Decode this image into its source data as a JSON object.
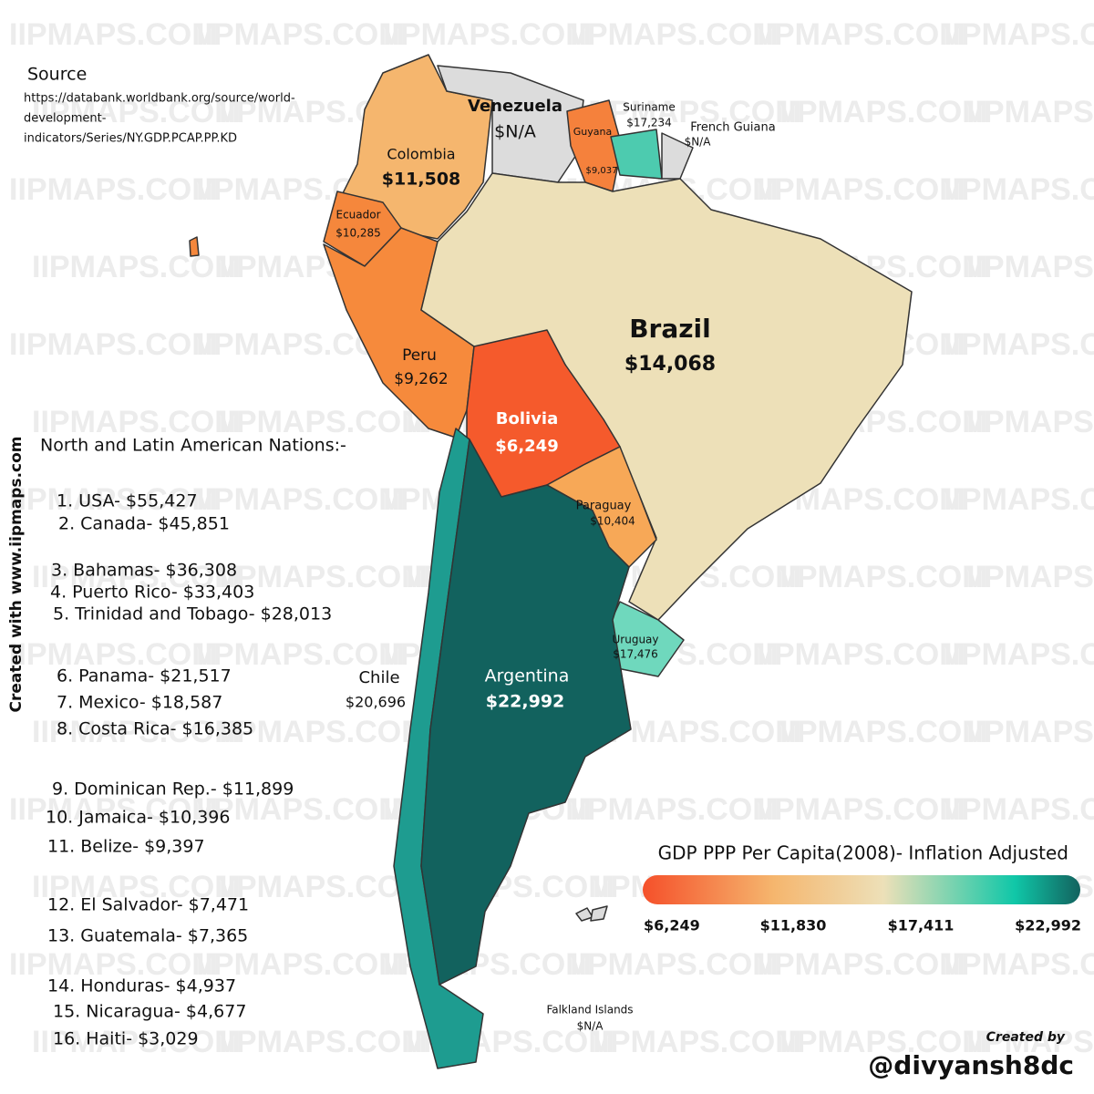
{
  "watermark": "IIPMAPS.COM",
  "source": {
    "title": "Source",
    "lines": [
      "https://databank.worldbank.org/source/world-",
      "development-",
      "indicators/Series/NY.GDP.PCAP.PP.KD"
    ]
  },
  "countries": [
    {
      "name": "Venezuela",
      "value": "$N/A"
    },
    {
      "name": "Colombia",
      "value": "$11,508"
    },
    {
      "name": "Guyana",
      "value": "$9,037"
    },
    {
      "name": "Suriname",
      "value": "$17,234"
    },
    {
      "name": "French Guiana",
      "value": "$N/A"
    },
    {
      "name": "Ecuador",
      "value": "$10,285"
    },
    {
      "name": "Peru",
      "value": "$9,262"
    },
    {
      "name": "Brazil",
      "value": "$14,068"
    },
    {
      "name": "Bolivia",
      "value": "$6,249"
    },
    {
      "name": "Paraguay",
      "value": "$10,404"
    },
    {
      "name": "Uruguay",
      "value": "$17,476"
    },
    {
      "name": "Chile",
      "value": "$20,696"
    },
    {
      "name": "Argentina",
      "value": "$22,992"
    },
    {
      "name": "Falkland Islands",
      "value": "$N/A"
    }
  ],
  "list": {
    "title": "North and Latin American Nations:-",
    "items": [
      "1. USA- $55,427",
      "2. Canada- $45,851",
      "3. Bahamas- $36,308",
      "4. Puerto Rico- $33,403",
      "5. Trinidad and Tobago- $28,013",
      "6. Panama- $21,517",
      "7. Mexico- $18,587",
      "8. Costa Rica- $16,385",
      "9. Dominican Rep.- $11,899",
      "10. Jamaica- $10,396",
      "11. Belize- $9,397",
      "12. El Salvador- $7,471",
      "13. Guatemala- $7,365",
      "14. Honduras- $4,937",
      "15. Nicaragua- $4,677",
      "16. Haiti- $3,029"
    ]
  },
  "legend": {
    "title": "GDP PPP Per Capita(2008)- Inflation Adjusted",
    "ticks": [
      "$6,249",
      "$11,830",
      "$17,411",
      "$22,992"
    ]
  },
  "side_text": "Created with www.iipmaps.com",
  "credit": {
    "label": "Created by",
    "handle": "@divyansh8dc"
  }
}
